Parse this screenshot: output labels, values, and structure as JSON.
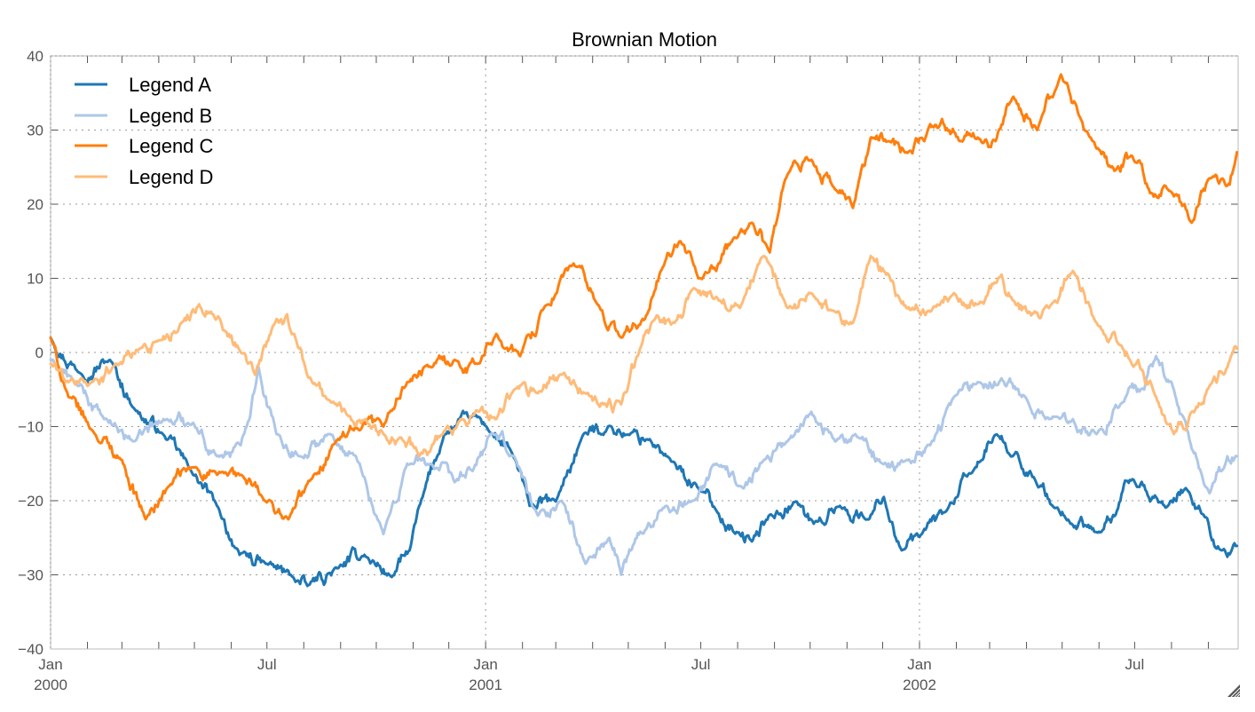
{
  "chart_data": {
    "type": "line",
    "title": "Brownian Motion",
    "xlabel": "",
    "ylabel": "",
    "x_range": [
      "2000-01-01",
      "2002-09-26"
    ],
    "ylim": [
      -40,
      40
    ],
    "y_ticks": [
      -40,
      -30,
      -20,
      -10,
      0,
      10,
      20,
      30,
      40
    ],
    "y_tick_labels": [
      "−40",
      "−30",
      "−20",
      "−10",
      "0",
      "10",
      "20",
      "30",
      "40"
    ],
    "x_major_ticks": [
      {
        "date": "2000-01-01",
        "label": "Jan",
        "sublabel": "2000"
      },
      {
        "date": "2000-07-01",
        "label": "Jul",
        "sublabel": ""
      },
      {
        "date": "2001-01-01",
        "label": "Jan",
        "sublabel": "2001"
      },
      {
        "date": "2001-07-01",
        "label": "Jul",
        "sublabel": ""
      },
      {
        "date": "2002-01-01",
        "label": "Jan",
        "sublabel": "2002"
      },
      {
        "date": "2002-07-01",
        "label": "Jul",
        "sublabel": ""
      }
    ],
    "x_minor_ticks": "monthly",
    "grid": true,
    "legend_position": "top-left",
    "series": [
      {
        "name": "Legend A",
        "color": "#1f77b4",
        "x_days": [
          0,
          25,
          50,
          70,
          95,
          118,
          140,
          159,
          181,
          204,
          216,
          242,
          264,
          287,
          302,
          313,
          331,
          354,
          366,
          388,
          403,
          425,
          448,
          470,
          485,
          504,
          522,
          545,
          560,
          578,
          590,
          605,
          627,
          642,
          664,
          687,
          701,
          716,
          731,
          754,
          776,
          795,
          813,
          828,
          843,
          858,
          881,
          896,
          910,
          925,
          940,
          955,
          970,
          985,
          998
        ],
        "values": [
          2.0,
          -2.8,
          -1.0,
          -7.5,
          -11.1,
          -15.9,
          -20.7,
          -27.3,
          -28.5,
          -30.3,
          -31.5,
          -29.1,
          -27.3,
          -30.3,
          -26.7,
          -19.5,
          -11.1,
          -8.7,
          -9.9,
          -13.5,
          -20.7,
          -20.1,
          -11.1,
          -9.9,
          -11.1,
          -11.7,
          -14.7,
          -18.3,
          -21.3,
          -24.3,
          -25.5,
          -21.9,
          -20.1,
          -23.1,
          -20.7,
          -22.5,
          -19.5,
          -26.7,
          -24.9,
          -21.3,
          -16.0,
          -11.1,
          -13.5,
          -17.1,
          -20.7,
          -23.1,
          -24.3,
          -21.9,
          -17.1,
          -20.1,
          -20.7,
          -18.3,
          -21.9,
          -26.7,
          -26.1
        ]
      },
      {
        "name": "Legend B",
        "color": "#aec7e8",
        "x_days": [
          0,
          20,
          45,
          70,
          95,
          120,
          140,
          160,
          175,
          190,
          210,
          235,
          260,
          280,
          300,
          320,
          340,
          355,
          370,
          390,
          410,
          430,
          450,
          470,
          480,
          490,
          500,
          515,
          540,
          560,
          580,
          600,
          620,
          640,
          660,
          680,
          700,
          720,
          740,
          760,
          780,
          800,
          820,
          840,
          860,
          880,
          900,
          920,
          930,
          945,
          960,
          975,
          990,
          998
        ],
        "values": [
          -1.0,
          -4.0,
          -9.0,
          -12.0,
          -9.0,
          -9.5,
          -14.0,
          -12.5,
          -2.0,
          -11.0,
          -14.0,
          -11.0,
          -15.0,
          -24.5,
          -15.0,
          -15.0,
          -17.5,
          -16.0,
          -11.0,
          -14.0,
          -22.0,
          -20.0,
          -28.5,
          -25.0,
          -30.0,
          -26.0,
          -24.0,
          -21.0,
          -20.0,
          -15.0,
          -18.0,
          -14.5,
          -12.0,
          -8.0,
          -12.0,
          -11.5,
          -15.0,
          -14.5,
          -12.5,
          -6.0,
          -4.0,
          -3.5,
          -6.0,
          -9.0,
          -9.0,
          -11.0,
          -7.0,
          -5.0,
          -0.5,
          -5.0,
          -13.0,
          -19.0,
          -14.0,
          -14.0
        ]
      },
      {
        "name": "Legend C",
        "color": "#ff7f0e",
        "x_days": [
          0,
          15,
          35,
          60,
          80,
          100,
          120,
          140,
          160,
          180,
          200,
          220,
          240,
          260,
          280,
          300,
          320,
          340,
          360,
          375,
          395,
          415,
          440,
          460,
          480,
          500,
          515,
          530,
          545,
          560,
          575,
          590,
          605,
          620,
          640,
          660,
          675,
          690,
          705,
          720,
          735,
          750,
          765,
          780,
          795,
          810,
          830,
          850,
          865,
          880,
          895,
          910,
          925,
          940,
          960,
          975,
          990,
          998
        ],
        "values": [
          2.0,
          -6.0,
          -10.5,
          -14.5,
          -22.5,
          -18.0,
          -15.5,
          -16.5,
          -16.5,
          -20.0,
          -22.5,
          -17.0,
          -12.0,
          -10.5,
          -10.0,
          -4.0,
          -2.0,
          -1.0,
          -1.5,
          2.5,
          -0.5,
          6.0,
          12.0,
          6.5,
          2.0,
          4.5,
          11.5,
          15.0,
          10.0,
          11.0,
          15.5,
          17.5,
          13.5,
          24.0,
          26.0,
          22.0,
          19.5,
          29.0,
          28.5,
          27.0,
          28.5,
          31.5,
          28.5,
          29.0,
          28.5,
          34.5,
          30.0,
          37.5,
          32.0,
          27.5,
          24.5,
          26.5,
          21.5,
          22.0,
          17.5,
          23.5,
          22.5,
          27.0
        ]
      },
      {
        "name": "Legend D",
        "color": "#ffbb78",
        "x_days": [
          0,
          15,
          35,
          55,
          75,
          90,
          110,
          125,
          135,
          145,
          160,
          172,
          190,
          205,
          220,
          235,
          250,
          265,
          280,
          295,
          310,
          330,
          345,
          360,
          375,
          390,
          410,
          430,
          450,
          465,
          480,
          495,
          510,
          525,
          540,
          560,
          580,
          600,
          620,
          640,
          660,
          675,
          690,
          705,
          720,
          740,
          760,
          780,
          800,
          810,
          825,
          840,
          860,
          880,
          900,
          915,
          930,
          945,
          960,
          975,
          990,
          998
        ],
        "values": [
          -1.5,
          -4.0,
          -4.0,
          -1.5,
          0.5,
          1.5,
          4.0,
          6.5,
          5.5,
          3.0,
          0.0,
          -3.0,
          4.5,
          2.5,
          -4.0,
          -6.5,
          -8.5,
          -9.0,
          -11.0,
          -11.5,
          -14.0,
          -11.0,
          -9.0,
          -8.0,
          -9.0,
          -5.0,
          -5.5,
          -3.0,
          -5.5,
          -7.0,
          -7.0,
          0.0,
          5.0,
          4.0,
          8.5,
          7.5,
          6.0,
          13.0,
          6.0,
          8.0,
          5.5,
          4.0,
          13.0,
          10.5,
          6.0,
          5.5,
          8.0,
          6.5,
          10.5,
          7.0,
          5.0,
          6.0,
          11.0,
          4.0,
          1.0,
          -1.0,
          -6.0,
          -11.0,
          -8.0,
          -4.5,
          -2.0,
          0.5
        ]
      }
    ]
  },
  "legend": {
    "items": [
      {
        "label": "Legend A",
        "color": "#1f77b4"
      },
      {
        "label": "Legend B",
        "color": "#aec7e8"
      },
      {
        "label": "Legend C",
        "color": "#ff7f0e"
      },
      {
        "label": "Legend D",
        "color": "#ffbb78"
      }
    ]
  },
  "resize_handle": {
    "icon": "resize-grip-icon"
  }
}
